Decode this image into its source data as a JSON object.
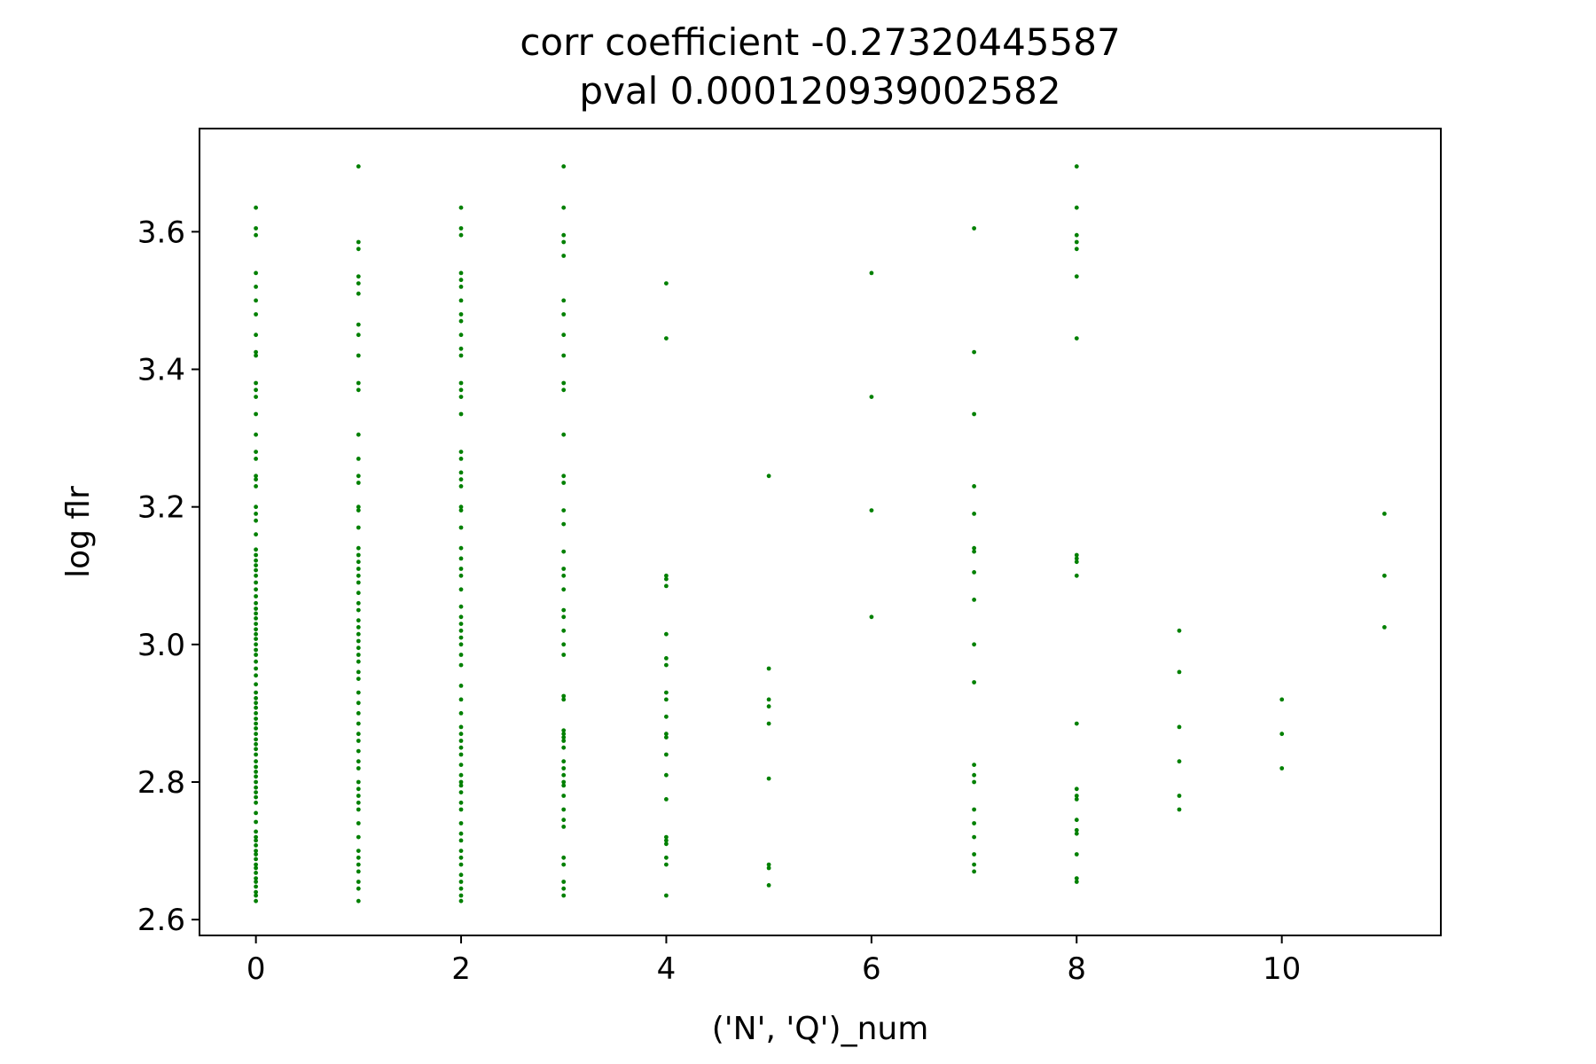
{
  "chart_data": {
    "type": "scatter",
    "title": "corr coefficient -0.27320445587",
    "subtitle": "pval 0.000120939002582",
    "xlabel": "('N', 'Q')_num",
    "ylabel": "log flr",
    "xlim": [
      -0.55,
      11.55
    ],
    "ylim": [
      2.577,
      3.75
    ],
    "xticks": [
      0,
      2,
      4,
      6,
      8,
      10
    ],
    "yticks": [
      2.6,
      2.8,
      3.0,
      3.2,
      3.4,
      3.6
    ],
    "ytick_labels": [
      "2.6",
      "2.8",
      "3.0",
      "3.2",
      "3.4",
      "3.6"
    ],
    "grid": false,
    "marker_color": "#008000",
    "series": [
      {
        "groups": [
          {
            "x": 0,
            "y": [
              2.627,
              2.635,
              2.64,
              2.648,
              2.655,
              2.66,
              2.668,
              2.675,
              2.68,
              2.688,
              2.695,
              2.7,
              2.708,
              2.715,
              2.72,
              2.728,
              2.742,
              2.755,
              2.77,
              2.778,
              2.785,
              2.792,
              2.8,
              2.808,
              2.815,
              2.822,
              2.83,
              2.84,
              2.848,
              2.855,
              2.862,
              2.87,
              2.878,
              2.885,
              2.892,
              2.9,
              2.908,
              2.915,
              2.922,
              2.93,
              2.942,
              2.955,
              2.965,
              2.975,
              2.985,
              2.992,
              3.0,
              3.008,
              3.015,
              3.022,
              3.03,
              3.038,
              3.045,
              3.052,
              3.06,
              3.07,
              3.08,
              3.09,
              3.1,
              3.108,
              3.115,
              3.122,
              3.13,
              3.138,
              3.16,
              3.18,
              3.19,
              3.2,
              3.23,
              3.24,
              3.245,
              3.27,
              3.28,
              3.305,
              3.335,
              3.36,
              3.37,
              3.38,
              3.42,
              3.425,
              3.45,
              3.48,
              3.5,
              3.52,
              3.54,
              3.595,
              3.605,
              3.635
            ]
          },
          {
            "x": 1,
            "y": [
              2.627,
              2.645,
              2.655,
              2.67,
              2.68,
              2.69,
              2.7,
              2.72,
              2.74,
              2.76,
              2.77,
              2.78,
              2.79,
              2.8,
              2.82,
              2.83,
              2.845,
              2.86,
              2.87,
              2.885,
              2.9,
              2.915,
              2.93,
              2.95,
              2.96,
              2.975,
              2.985,
              2.995,
              3.005,
              3.015,
              3.025,
              3.035,
              3.05,
              3.06,
              3.075,
              3.09,
              3.1,
              3.11,
              3.12,
              3.13,
              3.14,
              3.17,
              3.195,
              3.2,
              3.235,
              3.245,
              3.27,
              3.305,
              3.37,
              3.38,
              3.42,
              3.45,
              3.465,
              3.51,
              3.525,
              3.535,
              3.575,
              3.585,
              3.695
            ]
          },
          {
            "x": 2,
            "y": [
              2.627,
              2.635,
              2.645,
              2.655,
              2.665,
              2.68,
              2.69,
              2.7,
              2.715,
              2.725,
              2.74,
              2.76,
              2.77,
              2.785,
              2.795,
              2.8,
              2.81,
              2.825,
              2.84,
              2.85,
              2.86,
              2.87,
              2.88,
              2.9,
              2.92,
              2.94,
              2.97,
              2.985,
              3.0,
              3.01,
              3.02,
              3.03,
              3.04,
              3.055,
              3.08,
              3.1,
              3.11,
              3.125,
              3.14,
              3.17,
              3.195,
              3.2,
              3.23,
              3.24,
              3.25,
              3.27,
              3.28,
              3.335,
              3.36,
              3.37,
              3.38,
              3.42,
              3.43,
              3.45,
              3.47,
              3.48,
              3.5,
              3.52,
              3.53,
              3.54,
              3.595,
              3.605,
              3.635
            ]
          },
          {
            "x": 3,
            "y": [
              2.635,
              2.645,
              2.655,
              2.68,
              2.69,
              2.735,
              2.745,
              2.76,
              2.78,
              2.795,
              2.8,
              2.81,
              2.82,
              2.83,
              2.85,
              2.86,
              2.865,
              2.87,
              2.875,
              2.92,
              2.925,
              2.985,
              3.0,
              3.02,
              3.04,
              3.05,
              3.08,
              3.1,
              3.11,
              3.135,
              3.175,
              3.195,
              3.235,
              3.245,
              3.305,
              3.37,
              3.38,
              3.42,
              3.45,
              3.48,
              3.5,
              3.565,
              3.585,
              3.595,
              3.635,
              3.695
            ]
          },
          {
            "x": 4,
            "y": [
              2.635,
              2.68,
              2.69,
              2.71,
              2.715,
              2.72,
              2.775,
              2.81,
              2.84,
              2.865,
              2.87,
              2.895,
              2.92,
              2.93,
              2.97,
              2.98,
              3.015,
              3.085,
              3.095,
              3.1,
              3.445,
              3.525
            ]
          },
          {
            "x": 5,
            "y": [
              2.65,
              2.675,
              2.68,
              2.805,
              2.885,
              2.91,
              2.92,
              2.965,
              3.245
            ]
          },
          {
            "x": 6,
            "y": [
              3.04,
              3.195,
              3.36,
              3.54
            ]
          },
          {
            "x": 7,
            "y": [
              2.67,
              2.68,
              2.695,
              2.72,
              2.74,
              2.76,
              2.8,
              2.81,
              2.825,
              2.945,
              3.0,
              3.065,
              3.105,
              3.135,
              3.14,
              3.19,
              3.23,
              3.335,
              3.425,
              3.605
            ]
          },
          {
            "x": 8,
            "y": [
              2.655,
              2.66,
              2.695,
              2.725,
              2.73,
              2.745,
              2.775,
              2.78,
              2.79,
              2.885,
              3.1,
              3.12,
              3.125,
              3.13,
              3.445,
              3.535,
              3.575,
              3.585,
              3.595,
              3.635,
              3.695
            ]
          },
          {
            "x": 9,
            "y": [
              2.76,
              2.78,
              2.83,
              2.88,
              2.96,
              3.02
            ]
          },
          {
            "x": 10,
            "y": [
              2.82,
              2.87,
              2.92
            ]
          },
          {
            "x": 11,
            "y": [
              3.025,
              3.1,
              3.19
            ]
          }
        ]
      }
    ]
  }
}
